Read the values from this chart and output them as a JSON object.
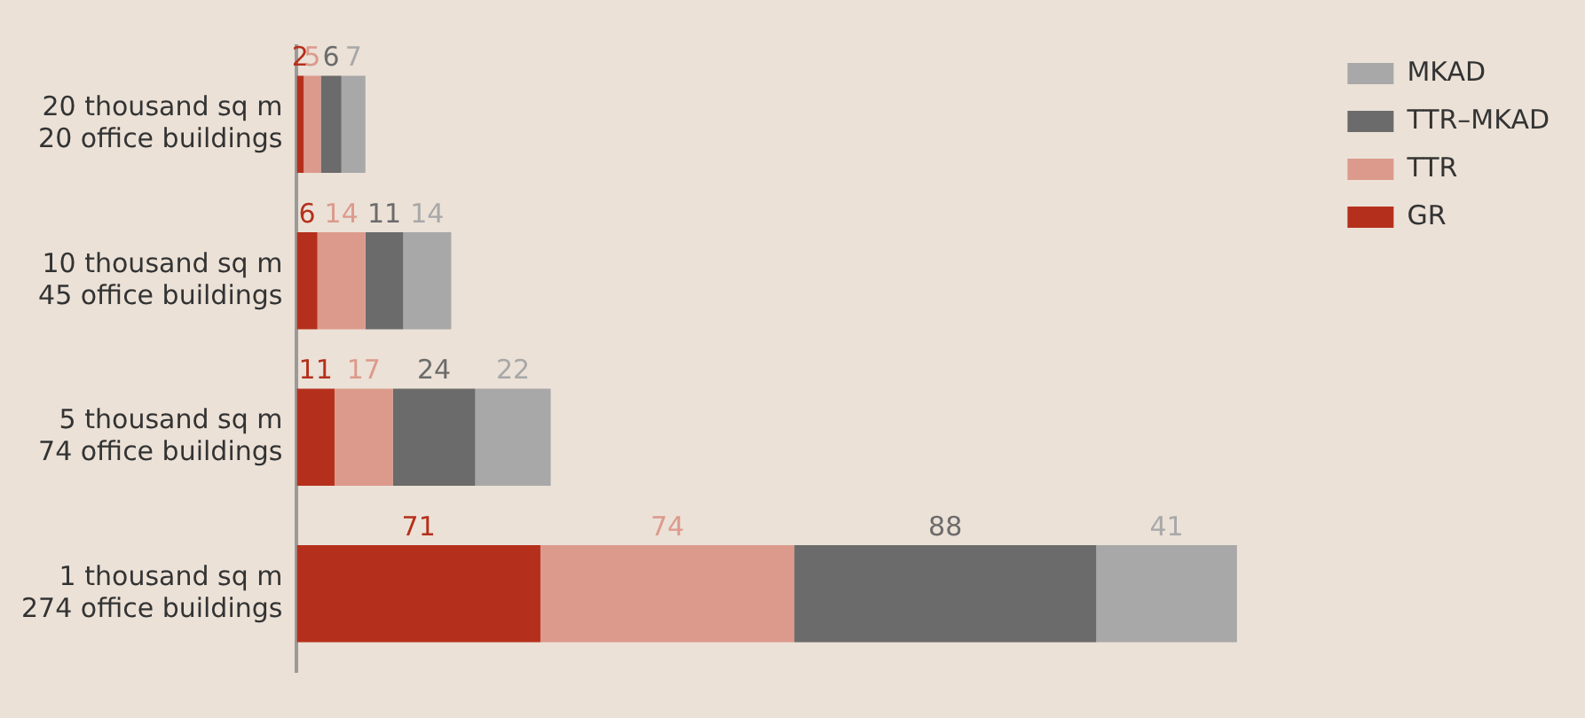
{
  "chart_data": {
    "type": "bar",
    "orientation": "horizontal",
    "stacked": true,
    "data_labels": true,
    "legend": "top right",
    "categories": [
      "20 thousand sq m\n20 office buildings",
      "10 thousand sq m\n45 office buildings",
      "5 thousand sq m\n74 office buildings",
      "1 thousand sq m\n274 office buildings"
    ],
    "series": [
      {
        "name": "GR",
        "color": "#b5301c",
        "values": [
          2,
          6,
          11,
          71
        ]
      },
      {
        "name": "TTR",
        "color": "#dc9a8c",
        "values": [
          5,
          14,
          17,
          74
        ]
      },
      {
        "name": "TTR–MKAD",
        "color": "#6b6b6b",
        "values": [
          6,
          11,
          24,
          88
        ]
      },
      {
        "name": "MKAD",
        "color": "#a8a8a8",
        "values": [
          7,
          14,
          22,
          41
        ]
      }
    ]
  }
}
